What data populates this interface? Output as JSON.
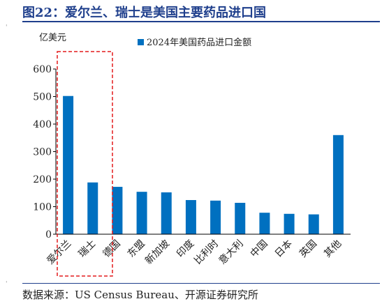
{
  "title": "图22：爱尔兰、瑞士是美国主要药品进口国",
  "source": "数据来源：US Census Bureau、开源证券研究所",
  "colors": {
    "title": "#1f3f8c",
    "bar": "#0070c0",
    "highlight": "#e31a1c"
  },
  "chart_data": {
    "type": "bar",
    "unit_label": "亿美元",
    "categories": [
      "爱尔兰",
      "瑞士",
      "德国",
      "东盟",
      "新加坡",
      "印度",
      "比利时",
      "意大利",
      "中国",
      "日本",
      "英国",
      "其他"
    ],
    "series": [
      {
        "name": "2024年美国药品进口金额",
        "values": [
          502,
          188,
          172,
          154,
          152,
          124,
          122,
          114,
          78,
          74,
          72,
          360
        ]
      }
    ],
    "ylim": [
      0,
      600
    ],
    "yticks": [
      0,
      100,
      200,
      300,
      400,
      500,
      600
    ],
    "legend_position": "top",
    "grid": false,
    "highlight": {
      "categories": [
        "爱尔兰",
        "瑞士"
      ],
      "style": "red dashed box"
    }
  }
}
